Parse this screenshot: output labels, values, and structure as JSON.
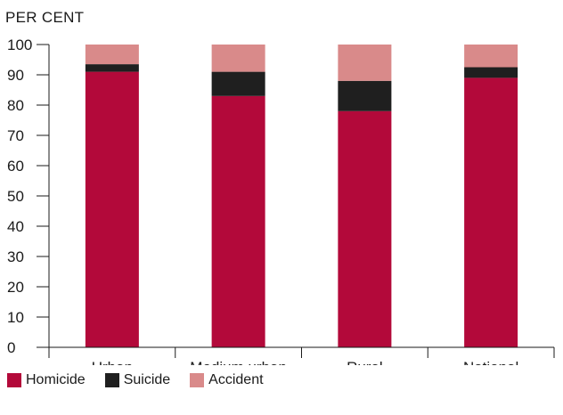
{
  "chart_data": {
    "type": "bar",
    "stacked": true,
    "ylabel": "PER CENT",
    "ylim": [
      0,
      100
    ],
    "yticks": [
      0,
      10,
      20,
      30,
      40,
      50,
      60,
      70,
      80,
      90,
      100
    ],
    "categories": [
      "Urban",
      "Medium urban",
      "Rural",
      "National"
    ],
    "series": [
      {
        "name": "Homicide",
        "color": "#b3093a",
        "values": [
          91,
          83,
          78,
          89
        ]
      },
      {
        "name": "Suicide",
        "color": "#1f1f1f",
        "values": [
          2.5,
          8,
          10,
          3.5
        ]
      },
      {
        "name": "Accident",
        "color": "#d98a8a",
        "values": [
          6.5,
          9,
          12,
          7.5
        ]
      }
    ],
    "grid": false,
    "legend_position": "bottom-left"
  }
}
